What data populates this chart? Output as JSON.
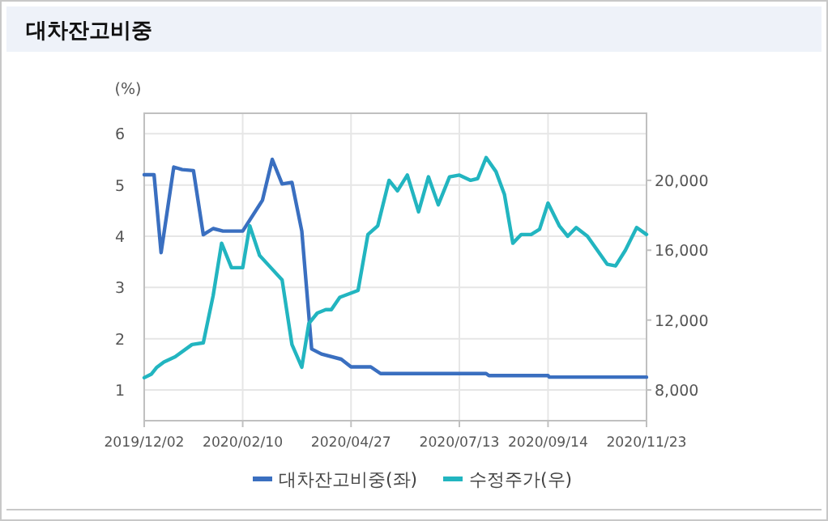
{
  "chart_data": {
    "type": "line",
    "title": "대차잔고비중",
    "ylabel": "(%)",
    "legend": "bottom",
    "grid": true,
    "marker": "none",
    "line_style": "solid",
    "xlim": [
      "2019-12-02",
      "2020-11-23"
    ],
    "xticks": [
      {
        "value": "2019-12-02",
        "label": "2019/12/02"
      },
      {
        "value": "2020-02-10",
        "label": "2020/02/10"
      },
      {
        "value": "2020-04-27",
        "label": "2020/04/27"
      },
      {
        "value": "2020-07-13",
        "label": "2020/07/13"
      },
      {
        "value": "2020-09-14",
        "label": "2020/09/14"
      },
      {
        "value": "2020-11-23",
        "label": "2020/11/23"
      }
    ],
    "ylim": [
      0.4,
      6.4
    ],
    "yticks": [
      1,
      2,
      3,
      4,
      5,
      6
    ],
    "y2lim": [
      6240,
      23840
    ],
    "y2ticks": [
      {
        "value": 8000,
        "label": "8,000"
      },
      {
        "value": 12000,
        "label": "12,000"
      },
      {
        "value": 16000,
        "label": "16,000"
      },
      {
        "value": 20000,
        "label": "20,000"
      }
    ],
    "series": [
      {
        "name": "대차잔고비중(좌)",
        "color": "#3a6fc0",
        "x": [
          "2019-12-02",
          "2019-12-09",
          "2019-12-14",
          "2019-12-23",
          "2019-12-29",
          "2020-01-06",
          "2020-01-13",
          "2020-01-20",
          "2020-01-27",
          "2020-02-10",
          "2020-02-24",
          "2020-03-02",
          "2020-03-09",
          "2020-03-16",
          "2020-03-23",
          "2020-03-30",
          "2020-04-06",
          "2020-04-20",
          "2020-04-27",
          "2020-05-11",
          "2020-05-18",
          "2020-08-01",
          "2020-08-03",
          "2020-09-14",
          "2020-09-15",
          "2020-11-23"
        ],
        "values": [
          5.2,
          5.2,
          3.68,
          5.35,
          5.3,
          5.28,
          4.03,
          4.15,
          4.1,
          4.1,
          4.7,
          5.5,
          5.02,
          5.05,
          4.1,
          1.8,
          1.7,
          1.6,
          1.45,
          1.45,
          1.32,
          1.32,
          1.28,
          1.28,
          1.25,
          1.25
        ]
      },
      {
        "name": "수정주가(우)",
        "color": "#22b5c0",
        "axis": "y2",
        "x": [
          "2019-12-02",
          "2019-12-07",
          "2019-12-11",
          "2019-12-16",
          "2019-12-24",
          "2020-01-05",
          "2020-01-13",
          "2020-01-20",
          "2020-01-26",
          "2020-02-02",
          "2020-02-10",
          "2020-02-15",
          "2020-02-22",
          "2020-03-01",
          "2020-03-09",
          "2020-03-16",
          "2020-03-23",
          "2020-03-28",
          "2020-04-03",
          "2020-04-09",
          "2020-04-13",
          "2020-04-19",
          "2020-05-02",
          "2020-05-09",
          "2020-05-16",
          "2020-05-24",
          "2020-05-30",
          "2020-06-06",
          "2020-06-14",
          "2020-06-21",
          "2020-06-28",
          "2020-07-06",
          "2020-07-13",
          "2020-07-21",
          "2020-07-26",
          "2020-08-01",
          "2020-08-08",
          "2020-08-14",
          "2020-08-20",
          "2020-08-26",
          "2020-09-02",
          "2020-09-08",
          "2020-09-14",
          "2020-09-22",
          "2020-09-28",
          "2020-10-04",
          "2020-10-12",
          "2020-10-19",
          "2020-10-26",
          "2020-11-01",
          "2020-11-08",
          "2020-11-16",
          "2020-11-23"
        ],
        "values": [
          8700,
          8900,
          9300,
          9600,
          9900,
          10600,
          10700,
          13400,
          16400,
          15000,
          15000,
          17400,
          15700,
          15000,
          14300,
          10600,
          9300,
          11800,
          12400,
          12600,
          12600,
          13300,
          13700,
          16900,
          17400,
          20000,
          19400,
          20300,
          18200,
          20200,
          18600,
          20200,
          20300,
          20000,
          20100,
          21300,
          20500,
          19200,
          16400,
          16900,
          16900,
          17200,
          18700,
          17400,
          16800,
          17300,
          16800,
          16000,
          15200,
          15100,
          16000,
          17300,
          16900
        ]
      }
    ]
  }
}
